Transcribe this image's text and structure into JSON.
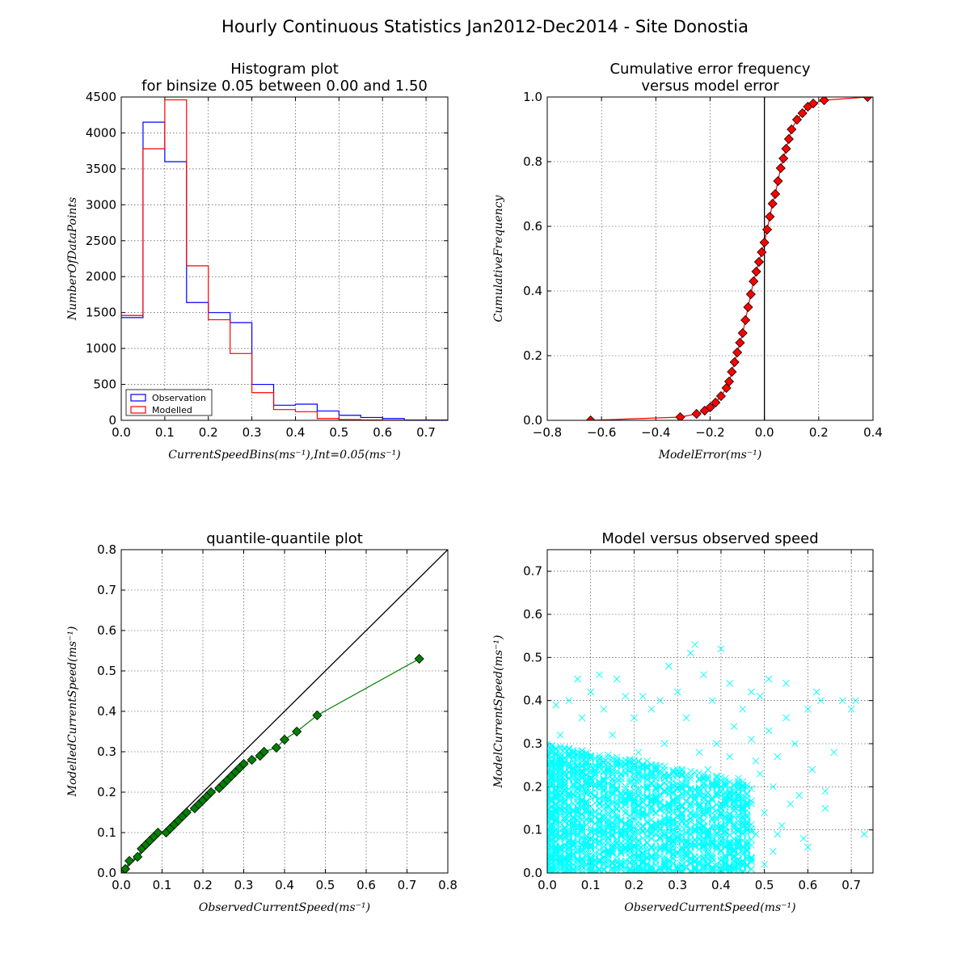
{
  "figure": {
    "title": "Hourly Continuous Statistics Jan2012-Dec2014 - Site Donostia"
  },
  "chart_data": [
    {
      "id": "histogram",
      "type": "bar",
      "title": [
        "Histogram plot",
        "for binsize 0.05 between 0.00 and 1.50"
      ],
      "xlabel": "CurrentSpeedBins(ms⁻¹),Int=0.05(ms⁻¹)",
      "ylabel": "NumberOfDataPoints",
      "xlim": [
        0,
        0.75
      ],
      "ylim": [
        0,
        4500
      ],
      "xticks": [
        "0.0",
        "0.1",
        "0.2",
        "0.3",
        "0.4",
        "0.5",
        "0.6",
        "0.7"
      ],
      "yticks": [
        "0",
        "500",
        "1000",
        "1500",
        "2000",
        "2500",
        "3000",
        "3500",
        "4000",
        "4500"
      ],
      "grid": true,
      "legend_position": "lower-left",
      "bin_edges": [
        0,
        0.05,
        0.1,
        0.15,
        0.2,
        0.25,
        0.3,
        0.35,
        0.4,
        0.45,
        0.5,
        0.55,
        0.6,
        0.65,
        0.7,
        0.75
      ],
      "series": [
        {
          "name": "Observation",
          "color": "#0000ff",
          "values": [
            1430,
            4150,
            3600,
            1640,
            1500,
            1360,
            500,
            210,
            225,
            130,
            70,
            40,
            25,
            5,
            5
          ]
        },
        {
          "name": "Modelled",
          "color": "#ff0000",
          "values": [
            1460,
            3780,
            4460,
            2150,
            1400,
            930,
            385,
            150,
            120,
            25,
            10,
            5,
            2,
            0,
            0
          ]
        }
      ]
    },
    {
      "id": "cumulative",
      "type": "line",
      "title": [
        "Cumulative error frequency",
        "versus model error"
      ],
      "xlabel": "ModelError(ms⁻¹)",
      "ylabel": "CumulativeFrequency",
      "xlim": [
        -0.8,
        0.4
      ],
      "ylim": [
        0,
        1.0
      ],
      "xticks": [
        "−0.8",
        "−0.6",
        "−0.4",
        "−0.2",
        "0.0",
        "0.2",
        "0.4"
      ],
      "yticks": [
        "0.0",
        "0.2",
        "0.4",
        "0.6",
        "0.8",
        "1.0"
      ],
      "grid": true,
      "color": "#ff0000",
      "marker": "diamond",
      "vline_x": 0,
      "points": [
        [
          -0.64,
          0.0
        ],
        [
          -0.31,
          0.01
        ],
        [
          -0.25,
          0.02
        ],
        [
          -0.22,
          0.03
        ],
        [
          -0.2,
          0.04
        ],
        [
          -0.18,
          0.055
        ],
        [
          -0.16,
          0.075
        ],
        [
          -0.14,
          0.1
        ],
        [
          -0.13,
          0.12
        ],
        [
          -0.12,
          0.15
        ],
        [
          -0.11,
          0.18
        ],
        [
          -0.1,
          0.21
        ],
        [
          -0.09,
          0.24
        ],
        [
          -0.08,
          0.27
        ],
        [
          -0.07,
          0.31
        ],
        [
          -0.06,
          0.35
        ],
        [
          -0.05,
          0.39
        ],
        [
          -0.04,
          0.43
        ],
        [
          -0.03,
          0.46
        ],
        [
          -0.02,
          0.49
        ],
        [
          -0.01,
          0.52
        ],
        [
          0.0,
          0.55
        ],
        [
          0.01,
          0.59
        ],
        [
          0.02,
          0.63
        ],
        [
          0.03,
          0.67
        ],
        [
          0.04,
          0.7
        ],
        [
          0.05,
          0.74
        ],
        [
          0.06,
          0.78
        ],
        [
          0.07,
          0.81
        ],
        [
          0.08,
          0.84
        ],
        [
          0.09,
          0.87
        ],
        [
          0.1,
          0.9
        ],
        [
          0.12,
          0.93
        ],
        [
          0.14,
          0.95
        ],
        [
          0.16,
          0.97
        ],
        [
          0.18,
          0.98
        ],
        [
          0.22,
          0.99
        ],
        [
          0.38,
          1.0
        ]
      ]
    },
    {
      "id": "qq",
      "type": "line",
      "title": "quantile-quantile plot",
      "xlabel": "ObservedCurrentSpeed(ms⁻¹)",
      "ylabel": "ModelledCurrentSpeed(ms⁻¹)",
      "xlim": [
        0,
        0.8
      ],
      "ylim": [
        0,
        0.8
      ],
      "xticks": [
        "0.0",
        "0.1",
        "0.2",
        "0.3",
        "0.4",
        "0.5",
        "0.6",
        "0.7",
        "0.8"
      ],
      "yticks": [
        "0.0",
        "0.1",
        "0.2",
        "0.3",
        "0.4",
        "0.5",
        "0.6",
        "0.7",
        "0.8"
      ],
      "grid": true,
      "color": "#008000",
      "marker": "diamond",
      "reference_line": [
        [
          0,
          0
        ],
        [
          0.8,
          0.8
        ]
      ],
      "points": [
        [
          0.0,
          0.0
        ],
        [
          0.01,
          0.01
        ],
        [
          0.02,
          0.03
        ],
        [
          0.04,
          0.04
        ],
        [
          0.05,
          0.06
        ],
        [
          0.06,
          0.07
        ],
        [
          0.07,
          0.08
        ],
        [
          0.08,
          0.09
        ],
        [
          0.09,
          0.1
        ],
        [
          0.11,
          0.1
        ],
        [
          0.12,
          0.11
        ],
        [
          0.13,
          0.12
        ],
        [
          0.14,
          0.13
        ],
        [
          0.15,
          0.14
        ],
        [
          0.16,
          0.15
        ],
        [
          0.18,
          0.16
        ],
        [
          0.19,
          0.17
        ],
        [
          0.2,
          0.18
        ],
        [
          0.21,
          0.19
        ],
        [
          0.22,
          0.2
        ],
        [
          0.24,
          0.21
        ],
        [
          0.25,
          0.22
        ],
        [
          0.26,
          0.23
        ],
        [
          0.27,
          0.24
        ],
        [
          0.28,
          0.25
        ],
        [
          0.29,
          0.26
        ],
        [
          0.3,
          0.27
        ],
        [
          0.32,
          0.28
        ],
        [
          0.34,
          0.29
        ],
        [
          0.35,
          0.3
        ],
        [
          0.38,
          0.31
        ],
        [
          0.4,
          0.33
        ],
        [
          0.43,
          0.35
        ],
        [
          0.48,
          0.39
        ],
        [
          0.73,
          0.53
        ]
      ]
    },
    {
      "id": "scatter",
      "type": "scatter",
      "title": "Model versus observed speed",
      "xlabel": "ObservedCurrentSpeed(ms⁻¹)",
      "ylabel": "ModelCurrentSpeed(ms⁻¹)",
      "xlim": [
        0,
        0.75
      ],
      "ylim": [
        0,
        0.75
      ],
      "xticks": [
        "0.0",
        "0.1",
        "0.2",
        "0.3",
        "0.4",
        "0.5",
        "0.6",
        "0.7"
      ],
      "yticks": [
        "0.0",
        "0.1",
        "0.2",
        "0.3",
        "0.4",
        "0.5",
        "0.6",
        "0.7"
      ],
      "grid": true,
      "color": "#00ffff",
      "marker": "x",
      "points": [
        [
          0.73,
          0.09
        ],
        [
          0.7,
          0.38
        ],
        [
          0.71,
          0.4
        ],
        [
          0.68,
          0.4
        ],
        [
          0.66,
          0.28
        ],
        [
          0.64,
          0.15
        ],
        [
          0.64,
          0.19
        ],
        [
          0.62,
          0.42
        ],
        [
          0.63,
          0.4
        ],
        [
          0.61,
          0.24
        ],
        [
          0.6,
          0.38
        ],
        [
          0.6,
          0.06
        ],
        [
          0.59,
          0.08
        ],
        [
          0.58,
          0.18
        ],
        [
          0.57,
          0.3
        ],
        [
          0.55,
          0.44
        ],
        [
          0.54,
          0.11
        ],
        [
          0.53,
          0.09
        ],
        [
          0.52,
          0.2
        ],
        [
          0.51,
          0.45
        ],
        [
          0.5,
          0.02
        ],
        [
          0.49,
          0.41
        ],
        [
          0.48,
          0.26
        ],
        [
          0.47,
          0.42
        ],
        [
          0.46,
          0.12
        ],
        [
          0.45,
          0.38
        ],
        [
          0.44,
          0.22
        ],
        [
          0.43,
          0.34
        ],
        [
          0.42,
          0.44
        ],
        [
          0.41,
          0.16
        ],
        [
          0.4,
          0.52
        ],
        [
          0.39,
          0.3
        ],
        [
          0.38,
          0.4
        ],
        [
          0.37,
          0.24
        ],
        [
          0.36,
          0.46
        ],
        [
          0.35,
          0.1
        ],
        [
          0.34,
          0.53
        ],
        [
          0.33,
          0.51
        ],
        [
          0.32,
          0.36
        ],
        [
          0.31,
          0.2
        ],
        [
          0.3,
          0.42
        ],
        [
          0.29,
          0.14
        ],
        [
          0.28,
          0.48
        ],
        [
          0.27,
          0.3
        ],
        [
          0.26,
          0.4
        ],
        [
          0.25,
          0.22
        ],
        [
          0.24,
          0.38
        ],
        [
          0.23,
          0.12
        ],
        [
          0.22,
          0.41
        ],
        [
          0.21,
          0.28
        ],
        [
          0.2,
          0.36
        ],
        [
          0.19,
          0.18
        ],
        [
          0.18,
          0.41
        ],
        [
          0.17,
          0.26
        ],
        [
          0.16,
          0.45
        ],
        [
          0.15,
          0.32
        ],
        [
          0.14,
          0.08
        ],
        [
          0.13,
          0.38
        ],
        [
          0.12,
          0.46
        ],
        [
          0.11,
          0.22
        ],
        [
          0.1,
          0.42
        ],
        [
          0.09,
          0.14
        ],
        [
          0.08,
          0.36
        ],
        [
          0.07,
          0.45
        ],
        [
          0.06,
          0.28
        ],
        [
          0.05,
          0.4
        ],
        [
          0.04,
          0.18
        ],
        [
          0.03,
          0.32
        ],
        [
          0.02,
          0.39
        ],
        [
          0.01,
          0.1
        ],
        [
          0.0,
          0.02
        ],
        [
          0.01,
          0.25
        ],
        [
          0.02,
          0.06
        ],
        [
          0.03,
          0.15
        ],
        [
          0.04,
          0.05
        ],
        [
          0.05,
          0.22
        ],
        [
          0.06,
          0.12
        ],
        [
          0.07,
          0.03
        ],
        [
          0.08,
          0.19
        ],
        [
          0.09,
          0.07
        ],
        [
          0.1,
          0.27
        ],
        [
          0.11,
          0.04
        ],
        [
          0.12,
          0.16
        ],
        [
          0.13,
          0.09
        ],
        [
          0.14,
          0.24
        ],
        [
          0.15,
          0.05
        ],
        [
          0.16,
          0.13
        ],
        [
          0.17,
          0.02
        ],
        [
          0.18,
          0.2
        ],
        [
          0.19,
          0.08
        ],
        [
          0.2,
          0.15
        ],
        [
          0.21,
          0.03
        ],
        [
          0.22,
          0.11
        ],
        [
          0.23,
          0.26
        ],
        [
          0.24,
          0.06
        ],
        [
          0.25,
          0.17
        ],
        [
          0.26,
          0.1
        ],
        [
          0.27,
          0.02
        ],
        [
          0.28,
          0.14
        ],
        [
          0.29,
          0.07
        ],
        [
          0.3,
          0.23
        ],
        [
          0.31,
          0.05
        ],
        [
          0.32,
          0.12
        ],
        [
          0.33,
          0.18
        ],
        [
          0.34,
          0.03
        ],
        [
          0.35,
          0.28
        ],
        [
          0.36,
          0.08
        ],
        [
          0.37,
          0.15
        ],
        [
          0.38,
          0.06
        ],
        [
          0.39,
          0.21
        ],
        [
          0.4,
          0.1
        ],
        [
          0.41,
          0.04
        ],
        [
          0.42,
          0.27
        ],
        [
          0.43,
          0.13
        ],
        [
          0.44,
          0.07
        ],
        [
          0.45,
          0.18
        ],
        [
          0.46,
          0.02
        ],
        [
          0.47,
          0.31
        ],
        [
          0.48,
          0.09
        ],
        [
          0.49,
          0.23
        ],
        [
          0.5,
          0.14
        ],
        [
          0.51,
          0.33
        ],
        [
          0.52,
          0.05
        ],
        [
          0.53,
          0.27
        ],
        [
          0.55,
          0.36
        ],
        [
          0.56,
          0.16
        ]
      ],
      "dense_cluster": {
        "x_range": [
          0.0,
          0.47
        ],
        "y_range": [
          0.0,
          0.3
        ],
        "count": 2600
      }
    }
  ]
}
